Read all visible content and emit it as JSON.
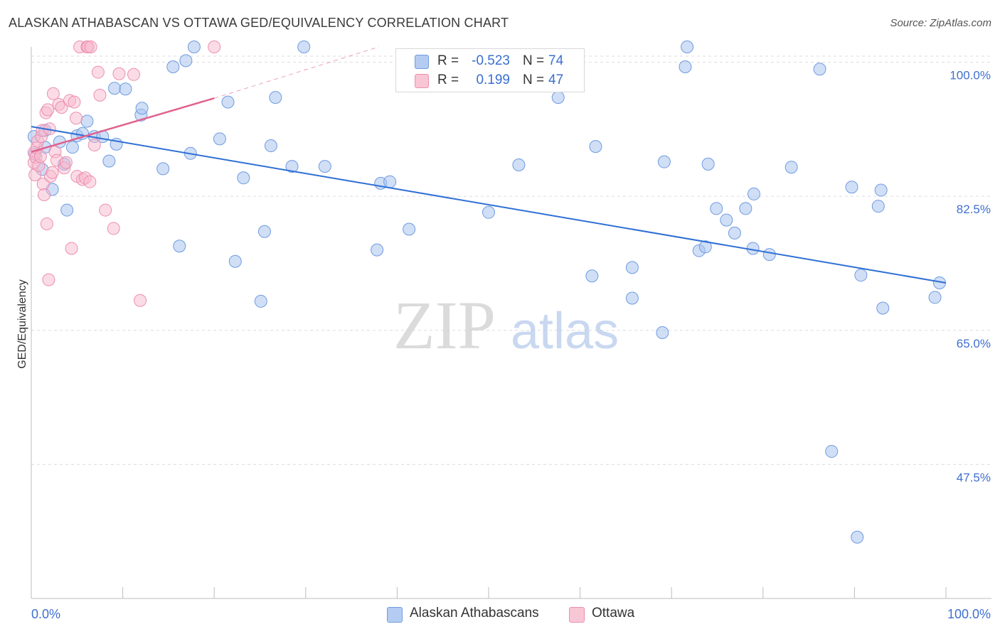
{
  "title": "ALASKAN ATHABASCAN VS OTTAWA GED/EQUIVALENCY CORRELATION CHART",
  "source": "Source: ZipAtlas.com",
  "watermark": {
    "zip": "ZIP",
    "atlas": "atlas"
  },
  "legend": {
    "rows": [
      {
        "r_label": "R =",
        "r_value": "-0.523",
        "n_label": "N =",
        "n_value": "74"
      },
      {
        "r_label": "R =",
        "r_value": "0.199",
        "n_label": "N =",
        "n_value": "47"
      }
    ]
  },
  "bottom_legend": {
    "series1": "Alaskan Athabascans",
    "series2": "Ottawa"
  },
  "colors": {
    "blue_fill": "#a9c4ef",
    "blue_stroke": "#6f9be0",
    "blue_line": "#2f6fd4",
    "pink_fill": "#f7b9cd",
    "pink_stroke": "#ec8fae",
    "pink_line": "#e0628f",
    "grid": "#dcdcdc",
    "axis_text": "#3f6fd0"
  },
  "chart_data": {
    "type": "scatter",
    "title": "ALASKAN ATHABASCAN VS OTTAWA GED/EQUIVALENCY CORRELATION CHART",
    "xlabel": "",
    "ylabel": "GED/Equivalency",
    "xlim": [
      0,
      100
    ],
    "ylim": [
      30,
      102
    ],
    "x_tick_labels": [
      "0.0%",
      "100.0%"
    ],
    "y_ticks": [
      100,
      82.5,
      65,
      47.5
    ],
    "y_tick_labels": [
      "100.0%",
      "82.5%",
      "65.0%",
      "47.5%"
    ],
    "series": [
      {
        "name": "Alaskan Athabascans",
        "color": "#6f9be0",
        "trend": {
          "x": [
            0,
            100
          ],
          "y": [
            91.6,
            71.2
          ]
        },
        "points": [
          [
            0.3,
            90.3
          ],
          [
            1.5,
            91.1
          ],
          [
            1.5,
            88.9
          ],
          [
            2.3,
            83.4
          ],
          [
            3.1,
            89.6
          ],
          [
            3.6,
            86.7
          ],
          [
            4.5,
            88.9
          ],
          [
            3.9,
            80.7
          ],
          [
            5.0,
            90.4
          ],
          [
            5.6,
            90.7
          ],
          [
            6.1,
            92.3
          ],
          [
            6.9,
            90.3
          ],
          [
            7.8,
            90.3
          ],
          [
            8.5,
            87.1
          ],
          [
            9.1,
            96.6
          ],
          [
            9.3,
            89.3
          ],
          [
            10.3,
            96.5
          ],
          [
            12.0,
            93.1
          ],
          [
            12.1,
            94.0
          ],
          [
            14.4,
            86.1
          ],
          [
            15.5,
            99.4
          ],
          [
            16.2,
            76.0
          ],
          [
            16.9,
            100.2
          ],
          [
            17.4,
            88.1
          ],
          [
            17.8,
            102.0
          ],
          [
            20.6,
            90.0
          ],
          [
            21.5,
            94.8
          ],
          [
            22.3,
            74.0
          ],
          [
            23.2,
            84.9
          ],
          [
            25.1,
            68.8
          ],
          [
            25.5,
            77.9
          ],
          [
            26.2,
            89.1
          ],
          [
            26.7,
            95.4
          ],
          [
            28.5,
            86.4
          ],
          [
            29.8,
            102.0
          ],
          [
            32.1,
            86.4
          ],
          [
            37.8,
            75.5
          ],
          [
            38.2,
            84.2
          ],
          [
            39.2,
            84.4
          ],
          [
            41.3,
            78.2
          ],
          [
            50.0,
            80.4
          ],
          [
            53.3,
            86.6
          ],
          [
            57.6,
            95.4
          ],
          [
            61.3,
            72.1
          ],
          [
            61.7,
            89.0
          ],
          [
            65.7,
            73.2
          ],
          [
            65.7,
            69.2
          ],
          [
            69.0,
            64.7
          ],
          [
            69.2,
            87.0
          ],
          [
            71.5,
            99.4
          ],
          [
            71.7,
            102.0
          ],
          [
            73.0,
            75.4
          ],
          [
            73.7,
            75.9
          ],
          [
            74.0,
            86.7
          ],
          [
            74.9,
            80.9
          ],
          [
            76.0,
            79.4
          ],
          [
            76.9,
            77.7
          ],
          [
            78.1,
            80.9
          ],
          [
            78.9,
            75.7
          ],
          [
            79.0,
            82.8
          ],
          [
            80.7,
            74.9
          ],
          [
            83.1,
            86.3
          ],
          [
            86.2,
            99.1
          ],
          [
            87.5,
            49.2
          ],
          [
            89.7,
            83.7
          ],
          [
            90.3,
            38.0
          ],
          [
            90.7,
            72.2
          ],
          [
            92.6,
            81.2
          ],
          [
            92.9,
            83.3
          ],
          [
            93.1,
            67.9
          ],
          [
            98.8,
            69.3
          ],
          [
            99.3,
            71.2
          ],
          [
            0.4,
            88.0
          ],
          [
            1.2,
            86.0
          ]
        ]
      },
      {
        "name": "Ottawa",
        "color": "#ec8fae",
        "trend": {
          "x": [
            0,
            20
          ],
          "y": [
            88.3,
            95.3
          ]
        },
        "trend_extended": {
          "x": [
            20,
            38
          ],
          "y": [
            95.3,
            102
          ]
        },
        "points": [
          [
            0.3,
            88.2
          ],
          [
            0.3,
            86.9
          ],
          [
            0.4,
            85.3
          ],
          [
            0.5,
            87.6
          ],
          [
            0.6,
            88.8
          ],
          [
            0.7,
            89.7
          ],
          [
            0.8,
            86.5
          ],
          [
            1.0,
            87.7
          ],
          [
            1.1,
            90.3
          ],
          [
            1.2,
            91.1
          ],
          [
            1.3,
            84.1
          ],
          [
            1.4,
            82.7
          ],
          [
            1.6,
            93.4
          ],
          [
            1.7,
            78.9
          ],
          [
            1.8,
            93.8
          ],
          [
            1.9,
            71.6
          ],
          [
            2.0,
            91.3
          ],
          [
            2.1,
            85.1
          ],
          [
            2.3,
            85.6
          ],
          [
            2.4,
            95.9
          ],
          [
            2.6,
            88.3
          ],
          [
            2.8,
            87.2
          ],
          [
            3.0,
            94.5
          ],
          [
            3.3,
            94.1
          ],
          [
            3.6,
            86.2
          ],
          [
            3.8,
            86.9
          ],
          [
            4.2,
            95.0
          ],
          [
            4.4,
            75.7
          ],
          [
            4.7,
            94.8
          ],
          [
            4.9,
            92.7
          ],
          [
            5.0,
            85.1
          ],
          [
            5.3,
            102.0
          ],
          [
            5.6,
            84.7
          ],
          [
            5.9,
            84.9
          ],
          [
            6.1,
            102.0
          ],
          [
            6.2,
            102.0
          ],
          [
            6.4,
            84.4
          ],
          [
            6.5,
            102.0
          ],
          [
            6.9,
            89.2
          ],
          [
            7.3,
            98.7
          ],
          [
            7.5,
            95.7
          ],
          [
            8.1,
            80.7
          ],
          [
            9.0,
            78.3
          ],
          [
            9.6,
            98.5
          ],
          [
            11.2,
            98.4
          ],
          [
            11.9,
            68.9
          ],
          [
            20.0,
            102.0
          ]
        ]
      }
    ]
  }
}
